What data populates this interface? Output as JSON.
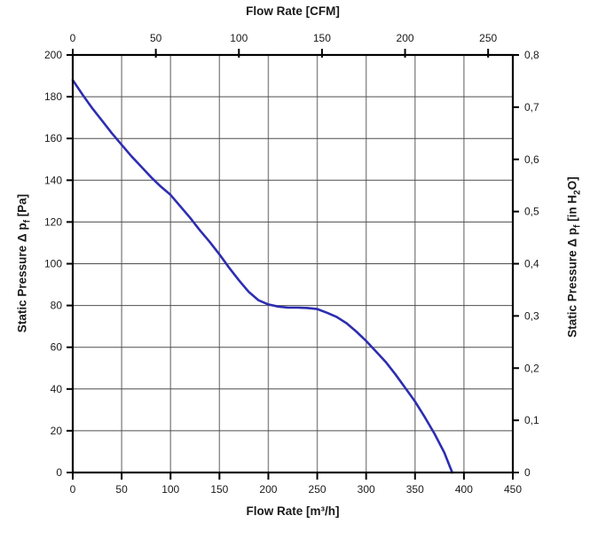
{
  "chart_data": {
    "type": "line",
    "title": "",
    "xlabel": "Flow Rate [m³/h]",
    "x2label": "Flow Rate [CFM]",
    "ylabel": "Static Pressure Δ pf [Pa]",
    "y2label": "Static Pressure Δ pf [in H₂O]",
    "grid": true,
    "legend": "none",
    "x_axis": {
      "min": 0,
      "max": 450,
      "ticks": [
        0,
        50,
        100,
        150,
        200,
        250,
        300,
        350,
        400,
        450
      ]
    },
    "x2_axis": {
      "min": 0,
      "ticks": [
        0,
        50,
        100,
        150,
        200,
        250
      ],
      "cfm_to_m3h": 1.699
    },
    "y_axis": {
      "min": 0,
      "max": 200,
      "ticks": [
        0,
        20,
        40,
        60,
        80,
        100,
        120,
        140,
        160,
        180,
        200
      ]
    },
    "y2_axis": {
      "min": 0,
      "max": 0.8,
      "tick_values": [
        0,
        0.1,
        0.2,
        0.3,
        0.4,
        0.5,
        0.6,
        0.7,
        0.8
      ],
      "tick_labels": [
        "0",
        "0,1",
        "0,2",
        "0,3",
        "0,4",
        "0,5",
        "0,6",
        "0,7",
        "0,8"
      ]
    },
    "series": [
      {
        "name": "fan-performance-curve",
        "color": "#2d2db0",
        "points_m3h_pa": [
          [
            0,
            188
          ],
          [
            10,
            181
          ],
          [
            20,
            174.5
          ],
          [
            30,
            168.5
          ],
          [
            40,
            162.5
          ],
          [
            50,
            157
          ],
          [
            60,
            151.5
          ],
          [
            70,
            146.5
          ],
          [
            80,
            141.5
          ],
          [
            90,
            137
          ],
          [
            100,
            133
          ],
          [
            110,
            127.5
          ],
          [
            120,
            122
          ],
          [
            130,
            116
          ],
          [
            140,
            110.5
          ],
          [
            150,
            104.5
          ],
          [
            160,
            98
          ],
          [
            170,
            92
          ],
          [
            180,
            86.5
          ],
          [
            190,
            82.5
          ],
          [
            200,
            80.5
          ],
          [
            210,
            79.5
          ],
          [
            220,
            79
          ],
          [
            230,
            79
          ],
          [
            240,
            78.8
          ],
          [
            250,
            78.3
          ],
          [
            260,
            76.5
          ],
          [
            270,
            74.5
          ],
          [
            280,
            71.5
          ],
          [
            290,
            67.5
          ],
          [
            300,
            63
          ],
          [
            310,
            58
          ],
          [
            320,
            53
          ],
          [
            330,
            47
          ],
          [
            340,
            40.5
          ],
          [
            350,
            34
          ],
          [
            360,
            26.5
          ],
          [
            370,
            18.5
          ],
          [
            380,
            9.5
          ],
          [
            388,
            0
          ]
        ]
      }
    ],
    "colors": {
      "curve": "#2d2db0",
      "axis": "#000000",
      "gridline_vertical": "#8a8a8a",
      "gridline_horizontal": "#4d4d4d",
      "background": "#ffffff"
    }
  },
  "labels": {
    "top": {
      "text": "Flow Rate [CFM]"
    },
    "bottom": {
      "text": "Flow Rate [m³/h]"
    },
    "left": {
      "t1": "Static Pressure Δ p",
      "s1": "f",
      "t2": " [Pa]"
    },
    "right": {
      "t1": "Static Pressure Δ p",
      "s1": "f",
      "t2": " [in H",
      "s2": "2",
      "t3": "O]"
    }
  }
}
